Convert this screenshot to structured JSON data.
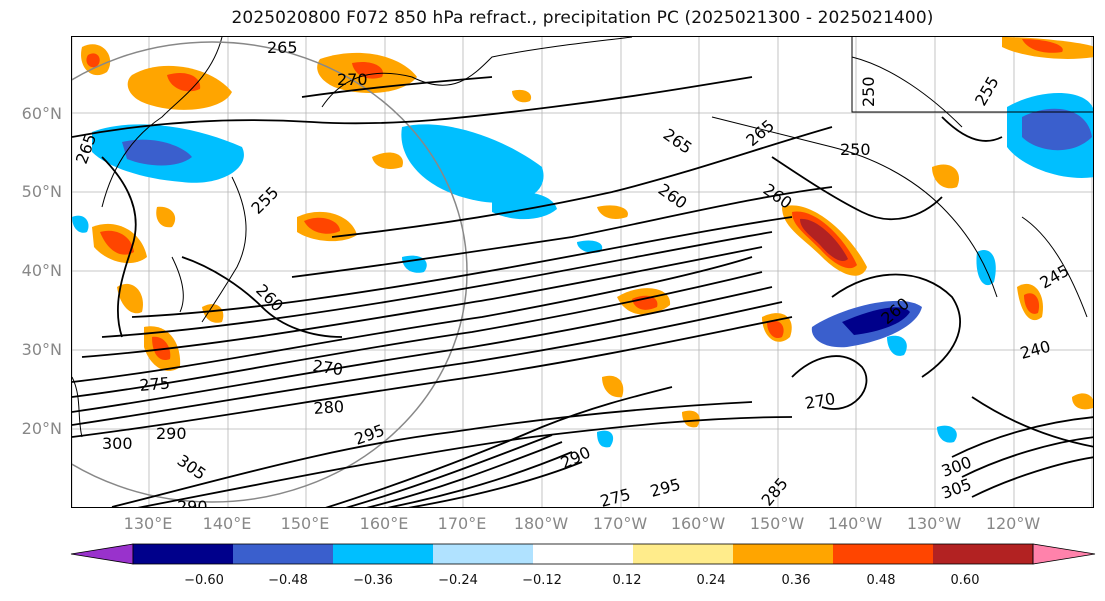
{
  "title": "2025020800 F072 850 hPa refract., precipitation PC (2025021300 - 2025021400)",
  "lat_labels": [
    "60°N",
    "50°N",
    "40°N",
    "30°N",
    "20°N"
  ],
  "lon_labels": [
    "130°E",
    "140°E",
    "150°E",
    "160°E",
    "170°E",
    "180°W",
    "170°W",
    "160°W",
    "150°W",
    "140°W",
    "130°W",
    "120°W"
  ],
  "contour_labels": [
    "270",
    "265",
    "265",
    "255",
    "260",
    "270",
    "275",
    "280",
    "290",
    "300",
    "305",
    "290",
    "295",
    "265",
    "260",
    "260",
    "265",
    "250",
    "250",
    "255",
    "245",
    "240",
    "270",
    "275",
    "285",
    "290",
    "295",
    "305",
    "300",
    "260"
  ],
  "colorbar": {
    "ticks": [
      "−0.60",
      "−0.48",
      "−0.36",
      "−0.24",
      "−0.12",
      "0.12",
      "0.24",
      "0.36",
      "0.48",
      "0.60"
    ],
    "colors": [
      "#9932cc",
      "#00008b",
      "#3a5fcd",
      "#00bfff",
      "#b0e2ff",
      "#ffffff",
      "#ffec8b",
      "#ffa500",
      "#ff4500",
      "#b22222",
      "#ff82ab"
    ]
  }
}
